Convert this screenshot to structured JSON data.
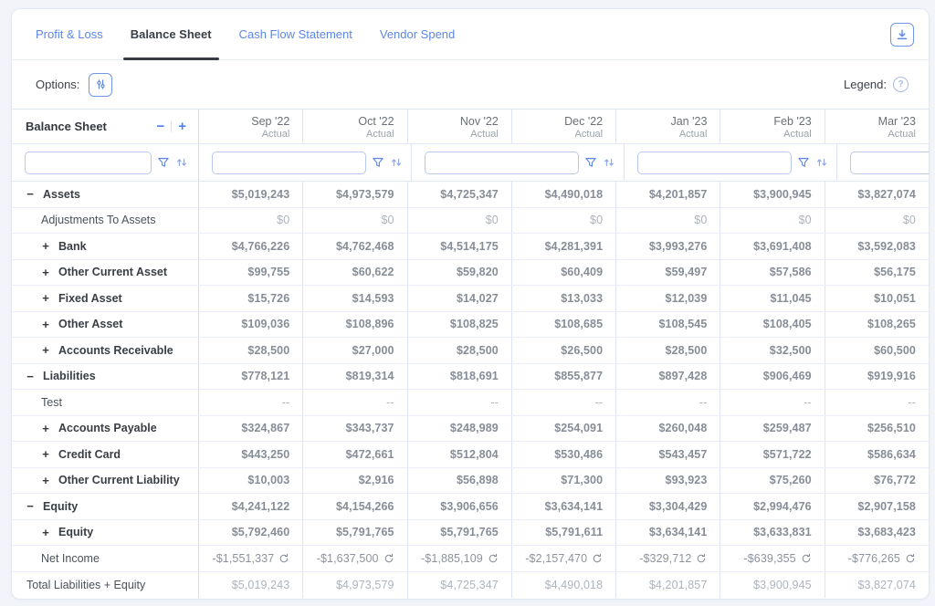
{
  "tabs": [
    {
      "label": "Profit & Loss",
      "active": false
    },
    {
      "label": "Balance Sheet",
      "active": true
    },
    {
      "label": "Cash Flow Statement",
      "active": false
    },
    {
      "label": "Vendor Spend",
      "active": false
    }
  ],
  "toolbar": {
    "options_label": "Options:",
    "legend_label": "Legend:",
    "help_glyph": "?"
  },
  "icons": {
    "download": "download-icon",
    "sliders": "sliders-icon",
    "filter": "funnel-icon",
    "sort": "sort-arrows-icon",
    "net_income_badge": "recalc-refresh-icon"
  },
  "colors": {
    "accent_blue": "#5b87e8",
    "active_tab": "#3a3f46",
    "value_grey": "#878d97",
    "muted_grey": "#adb3bd",
    "border_blue": "#dbe4f6"
  },
  "table": {
    "title": "Balance Sheet",
    "collapse_label": "−",
    "expand_label": "+",
    "columns": [
      {
        "month": "Sep '22",
        "sub": "Actual"
      },
      {
        "month": "Oct '22",
        "sub": "Actual"
      },
      {
        "month": "Nov '22",
        "sub": "Actual"
      },
      {
        "month": "Dec '22",
        "sub": "Actual"
      },
      {
        "month": "Jan '23",
        "sub": "Actual"
      },
      {
        "month": "Feb '23",
        "sub": "Actual"
      },
      {
        "month": "Mar '23",
        "sub": "Actual"
      }
    ],
    "rows": [
      {
        "label": "Assets",
        "style": "section",
        "toggle": "−",
        "muted": false,
        "badge": false,
        "values": [
          "$5,019,243",
          "$4,973,579",
          "$4,725,347",
          "$4,490,018",
          "$4,201,857",
          "$3,900,945",
          "$3,827,074"
        ]
      },
      {
        "label": "Adjustments To Assets",
        "style": "plain",
        "toggle": "",
        "muted": true,
        "badge": false,
        "values": [
          "$0",
          "$0",
          "$0",
          "$0",
          "$0",
          "$0",
          "$0"
        ]
      },
      {
        "label": "Bank",
        "style": "child",
        "toggle": "+",
        "muted": false,
        "badge": false,
        "values": [
          "$4,766,226",
          "$4,762,468",
          "$4,514,175",
          "$4,281,391",
          "$3,993,276",
          "$3,691,408",
          "$3,592,083"
        ]
      },
      {
        "label": "Other Current Asset",
        "style": "child",
        "toggle": "+",
        "muted": false,
        "badge": false,
        "values": [
          "$99,755",
          "$60,622",
          "$59,820",
          "$60,409",
          "$59,497",
          "$57,586",
          "$56,175"
        ]
      },
      {
        "label": "Fixed Asset",
        "style": "child",
        "toggle": "+",
        "muted": false,
        "badge": false,
        "values": [
          "$15,726",
          "$14,593",
          "$14,027",
          "$13,033",
          "$12,039",
          "$11,045",
          "$10,051"
        ]
      },
      {
        "label": "Other Asset",
        "style": "child",
        "toggle": "+",
        "muted": false,
        "badge": false,
        "values": [
          "$109,036",
          "$108,896",
          "$108,825",
          "$108,685",
          "$108,545",
          "$108,405",
          "$108,265"
        ]
      },
      {
        "label": "Accounts Receivable",
        "style": "child",
        "toggle": "+",
        "muted": false,
        "badge": false,
        "values": [
          "$28,500",
          "$27,000",
          "$28,500",
          "$26,500",
          "$28,500",
          "$32,500",
          "$60,500"
        ]
      },
      {
        "label": "Liabilities",
        "style": "section",
        "toggle": "−",
        "muted": false,
        "badge": false,
        "values": [
          "$778,121",
          "$819,314",
          "$818,691",
          "$855,877",
          "$897,428",
          "$906,469",
          "$919,916"
        ]
      },
      {
        "label": "Test",
        "style": "plain",
        "toggle": "",
        "muted": true,
        "badge": false,
        "values": [
          "--",
          "--",
          "--",
          "--",
          "--",
          "--",
          "--"
        ]
      },
      {
        "label": "Accounts Payable",
        "style": "child",
        "toggle": "+",
        "muted": false,
        "badge": false,
        "values": [
          "$324,867",
          "$343,737",
          "$248,989",
          "$254,091",
          "$260,048",
          "$259,487",
          "$256,510"
        ]
      },
      {
        "label": "Credit Card",
        "style": "child",
        "toggle": "+",
        "muted": false,
        "badge": false,
        "values": [
          "$443,250",
          "$472,661",
          "$512,804",
          "$530,486",
          "$543,457",
          "$571,722",
          "$586,634"
        ]
      },
      {
        "label": "Other Current Liability",
        "style": "child",
        "toggle": "+",
        "muted": false,
        "badge": false,
        "values": [
          "$10,003",
          "$2,916",
          "$56,898",
          "$71,300",
          "$93,923",
          "$75,260",
          "$76,772"
        ]
      },
      {
        "label": "Equity",
        "style": "section",
        "toggle": "−",
        "muted": false,
        "badge": false,
        "values": [
          "$4,241,122",
          "$4,154,266",
          "$3,906,656",
          "$3,634,141",
          "$3,304,429",
          "$2,994,476",
          "$2,907,158"
        ]
      },
      {
        "label": "Equity",
        "style": "child",
        "toggle": "+",
        "muted": false,
        "badge": false,
        "values": [
          "$5,792,460",
          "$5,791,765",
          "$5,791,765",
          "$5,791,611",
          "$3,634,141",
          "$3,633,831",
          "$3,683,423"
        ]
      },
      {
        "label": "Net Income",
        "style": "plain",
        "toggle": "",
        "muted": false,
        "badge": true,
        "values": [
          "-$1,551,337",
          "-$1,637,500",
          "-$1,885,109",
          "-$2,157,470",
          "-$329,712",
          "-$639,355",
          "-$776,265"
        ]
      },
      {
        "label": "Total Liabilities + Equity",
        "style": "total",
        "toggle": "",
        "muted": true,
        "badge": false,
        "values": [
          "$5,019,243",
          "$4,973,579",
          "$4,725,347",
          "$4,490,018",
          "$4,201,857",
          "$3,900,945",
          "$3,827,074"
        ]
      }
    ]
  }
}
